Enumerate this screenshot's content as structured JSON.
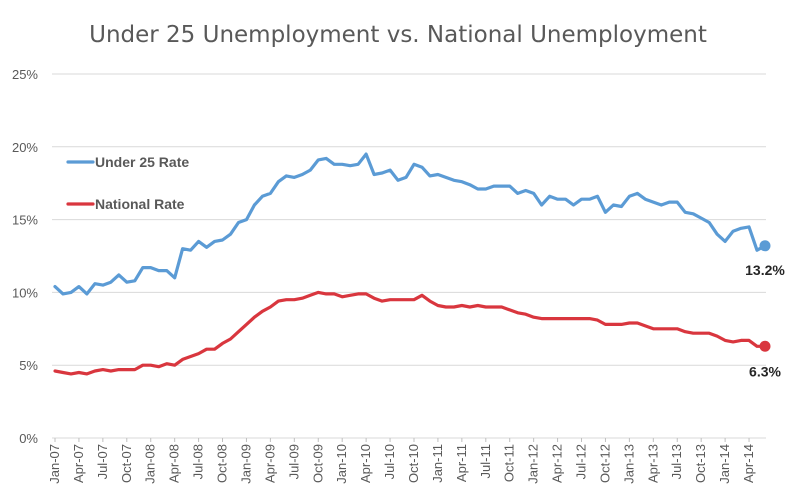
{
  "chart_data": {
    "type": "line",
    "title": "Under 25 Unemployment vs. National Unemployment",
    "xlabel": "",
    "ylabel": "",
    "ylim": [
      0,
      25
    ],
    "y_ticks": [
      "0%",
      "5%",
      "10%",
      "15%",
      "20%",
      "25%"
    ],
    "grid": true,
    "legend_position": "left-middle",
    "x_tick_labels": [
      "Jan-07",
      "Apr-07",
      "Jul-07",
      "Oct-07",
      "Jan-08",
      "Apr-08",
      "Jul-08",
      "Oct-08",
      "Jan-09",
      "Apr-09",
      "Jul-09",
      "Oct-09",
      "Jan-10",
      "Apr-10",
      "Jul-10",
      "Oct-10",
      "Jan-11",
      "Apr-11",
      "Jul-11",
      "Oct-11",
      "Jan-12",
      "Apr-12",
      "Jul-12",
      "Oct-12",
      "Jan-13",
      "Apr-13",
      "Jul-13",
      "Oct-13",
      "Jan-14",
      "Apr-14"
    ],
    "series": [
      {
        "name": "Under 25 Rate",
        "color": "#5b9bd5",
        "end_label": "13.2%",
        "values": [
          10.4,
          9.9,
          10.0,
          10.4,
          9.9,
          10.6,
          10.5,
          10.7,
          11.2,
          10.7,
          10.8,
          11.7,
          11.7,
          11.5,
          11.5,
          11.0,
          13.0,
          12.9,
          13.5,
          13.1,
          13.5,
          13.6,
          14.0,
          14.8,
          15.0,
          16.0,
          16.6,
          16.8,
          17.6,
          18.0,
          17.9,
          18.1,
          18.4,
          19.1,
          19.2,
          18.8,
          18.8,
          18.7,
          18.8,
          19.5,
          18.1,
          18.2,
          18.4,
          17.7,
          17.9,
          18.8,
          18.6,
          18.0,
          18.1,
          17.9,
          17.7,
          17.6,
          17.4,
          17.1,
          17.1,
          17.3,
          17.3,
          17.3,
          16.8,
          17.0,
          16.8,
          16.0,
          16.6,
          16.4,
          16.4,
          16.0,
          16.4,
          16.4,
          16.6,
          15.5,
          16.0,
          15.9,
          16.6,
          16.8,
          16.4,
          16.2,
          16.0,
          16.2,
          16.2,
          15.5,
          15.4,
          15.1,
          14.8,
          14.0,
          13.5,
          14.2,
          14.4,
          14.5,
          12.9,
          13.2
        ]
      },
      {
        "name": "National Rate",
        "color": "#d9363e",
        "end_label": "6.3%",
        "values": [
          4.6,
          4.5,
          4.4,
          4.5,
          4.4,
          4.6,
          4.7,
          4.6,
          4.7,
          4.7,
          4.7,
          5.0,
          5.0,
          4.9,
          5.1,
          5.0,
          5.4,
          5.6,
          5.8,
          6.1,
          6.1,
          6.5,
          6.8,
          7.3,
          7.8,
          8.3,
          8.7,
          9.0,
          9.4,
          9.5,
          9.5,
          9.6,
          9.8,
          10.0,
          9.9,
          9.9,
          9.7,
          9.8,
          9.9,
          9.9,
          9.6,
          9.4,
          9.5,
          9.5,
          9.5,
          9.5,
          9.8,
          9.4,
          9.1,
          9.0,
          9.0,
          9.1,
          9.0,
          9.1,
          9.0,
          9.0,
          9.0,
          8.8,
          8.6,
          8.5,
          8.3,
          8.2,
          8.2,
          8.2,
          8.2,
          8.2,
          8.2,
          8.2,
          8.1,
          7.8,
          7.8,
          7.8,
          7.9,
          7.9,
          7.7,
          7.5,
          7.5,
          7.5,
          7.5,
          7.3,
          7.2,
          7.2,
          7.2,
          7.0,
          6.7,
          6.6,
          6.7,
          6.7,
          6.3,
          6.3
        ]
      }
    ]
  }
}
